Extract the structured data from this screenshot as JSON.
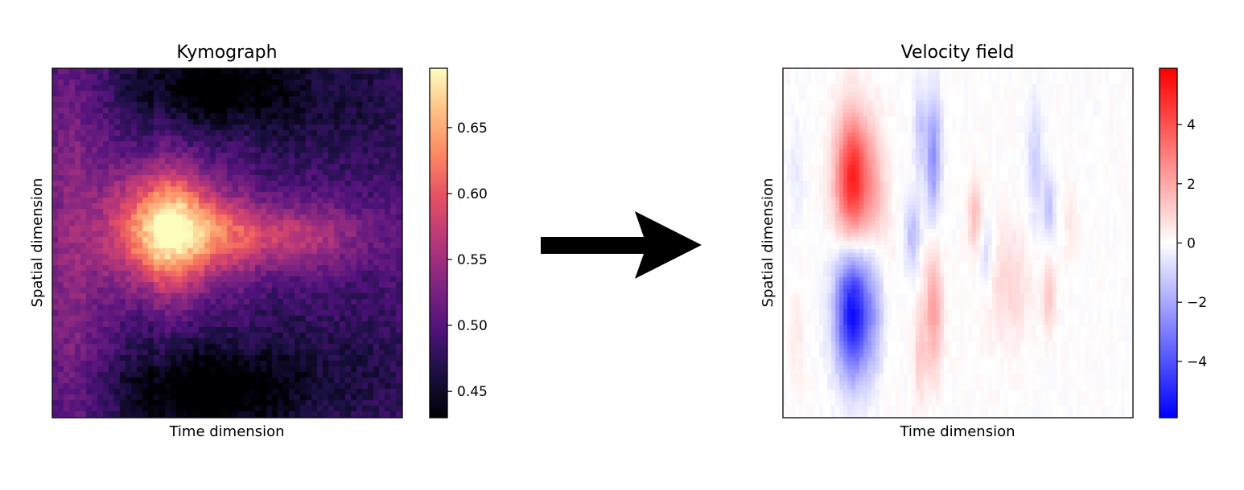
{
  "chart_data": [
    {
      "type": "heatmap",
      "title": "Kymograph",
      "xlabel": "Time dimension",
      "ylabel": "Spatial dimension",
      "colormap": "magma",
      "colorbar": {
        "range": [
          0.43,
          0.695
        ],
        "ticks": [
          0.45,
          0.5,
          0.55,
          0.6,
          0.65
        ],
        "tick_labels": [
          "0.45",
          "0.50",
          "0.55",
          "0.60",
          "0.65"
        ]
      },
      "background_value": 0.49,
      "blobs": [
        {
          "x": 0.33,
          "y": 0.46,
          "sx": 0.11,
          "sy": 0.12,
          "v": 0.19
        },
        {
          "x": 0.62,
          "y": 0.48,
          "sx": 0.2,
          "sy": 0.07,
          "v": 0.09
        },
        {
          "x": 0.05,
          "y": 0.5,
          "sx": 0.07,
          "sy": 0.45,
          "v": 0.05
        },
        {
          "x": 0.45,
          "y": 0.05,
          "sx": 0.17,
          "sy": 0.08,
          "v": -0.06
        },
        {
          "x": 0.42,
          "y": 0.93,
          "sx": 0.17,
          "sy": 0.09,
          "v": -0.07
        },
        {
          "x": 0.75,
          "y": 0.1,
          "sx": 0.3,
          "sy": 0.12,
          "v": -0.025
        },
        {
          "x": 0.75,
          "y": 0.88,
          "sx": 0.3,
          "sy": 0.12,
          "v": -0.025
        }
      ]
    },
    {
      "type": "heatmap",
      "title": "Velocity field",
      "xlabel": "Time dimension",
      "ylabel": "Spatial dimension",
      "colormap": "bwr",
      "colorbar": {
        "range": [
          -5.9,
          5.9
        ],
        "ticks": [
          -4,
          -2,
          0,
          2,
          4
        ],
        "tick_labels": [
          "−4",
          "−2",
          "0",
          "2",
          "4"
        ]
      },
      "background_value": 0,
      "blobs": [
        {
          "x": 0.2,
          "y": 0.32,
          "sx": 0.035,
          "sy": 0.13,
          "v": 5.2
        },
        {
          "x": 0.2,
          "y": 0.7,
          "sx": 0.035,
          "sy": 0.13,
          "v": -5.6
        },
        {
          "x": 0.265,
          "y": 0.35,
          "sx": 0.02,
          "sy": 0.12,
          "v": 1.2
        },
        {
          "x": 0.265,
          "y": 0.7,
          "sx": 0.02,
          "sy": 0.12,
          "v": -1.2
        },
        {
          "x": 0.43,
          "y": 0.25,
          "sx": 0.015,
          "sy": 0.12,
          "v": -2.6
        },
        {
          "x": 0.39,
          "y": 0.18,
          "sx": 0.012,
          "sy": 0.1,
          "v": -1.3
        },
        {
          "x": 0.37,
          "y": 0.48,
          "sx": 0.015,
          "sy": 0.07,
          "v": -1.6
        },
        {
          "x": 0.43,
          "y": 0.7,
          "sx": 0.018,
          "sy": 0.12,
          "v": 2.2
        },
        {
          "x": 0.39,
          "y": 0.82,
          "sx": 0.012,
          "sy": 0.1,
          "v": 1.2
        },
        {
          "x": 0.55,
          "y": 0.42,
          "sx": 0.015,
          "sy": 0.07,
          "v": 1.5
        },
        {
          "x": 0.58,
          "y": 0.55,
          "sx": 0.015,
          "sy": 0.08,
          "v": -1.1
        },
        {
          "x": 0.64,
          "y": 0.62,
          "sx": 0.05,
          "sy": 0.12,
          "v": 0.9
        },
        {
          "x": 0.72,
          "y": 0.28,
          "sx": 0.015,
          "sy": 0.12,
          "v": -1.1
        },
        {
          "x": 0.76,
          "y": 0.4,
          "sx": 0.012,
          "sy": 0.07,
          "v": -1.4
        },
        {
          "x": 0.76,
          "y": 0.65,
          "sx": 0.012,
          "sy": 0.07,
          "v": 1.4
        },
        {
          "x": 0.82,
          "y": 0.45,
          "sx": 0.015,
          "sy": 0.08,
          "v": 0.5
        },
        {
          "x": 0.04,
          "y": 0.3,
          "sx": 0.015,
          "sy": 0.1,
          "v": -0.5
        },
        {
          "x": 0.04,
          "y": 0.75,
          "sx": 0.015,
          "sy": 0.1,
          "v": 0.5
        },
        {
          "x": 0.3,
          "y": 0.5,
          "sx": 0.015,
          "sy": 0.25,
          "v": 0.3
        }
      ]
    }
  ]
}
